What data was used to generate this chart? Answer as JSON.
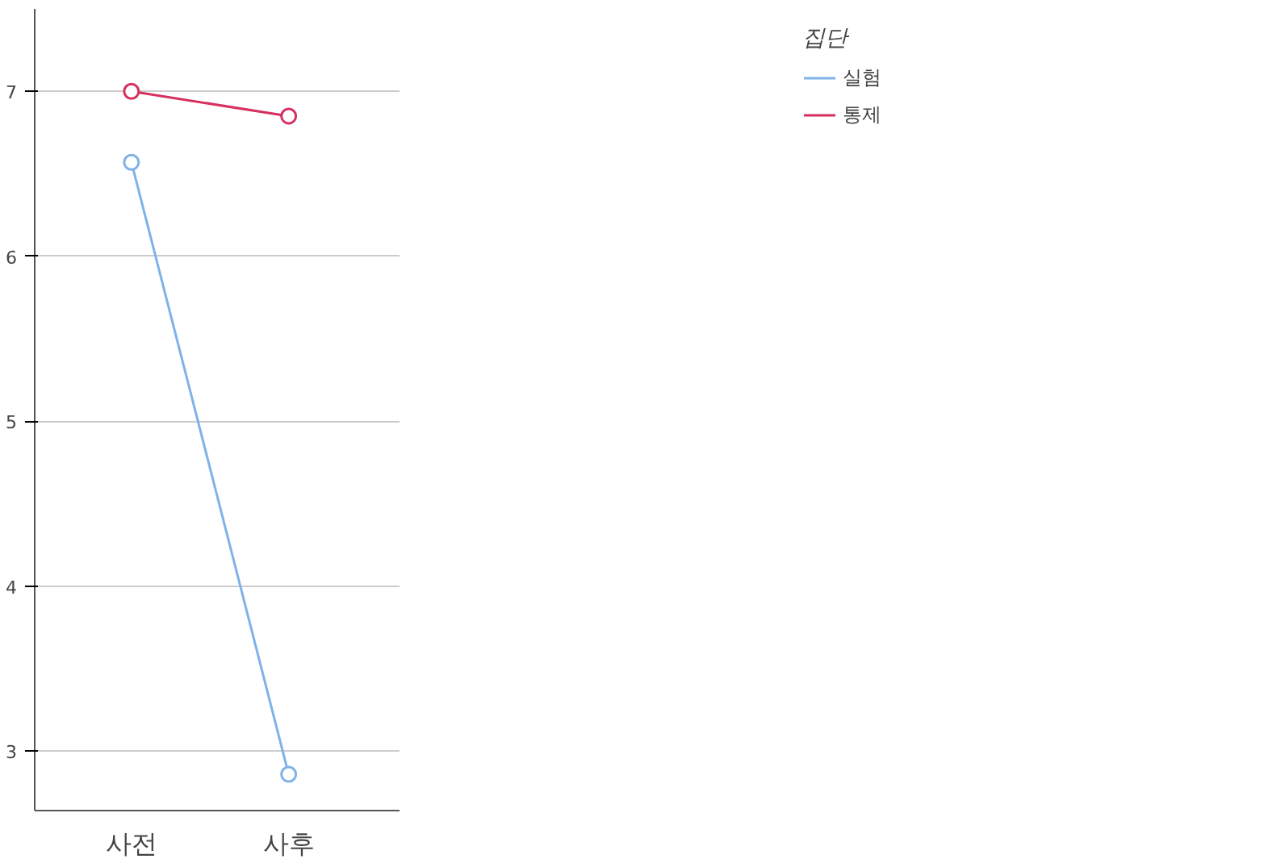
{
  "chart_data": {
    "type": "line",
    "categories": [
      "사전",
      "사후"
    ],
    "series": [
      {
        "name": "실험",
        "color": "#7fb2e8",
        "values": [
          6.57,
          2.86
        ]
      },
      {
        "name": "통제",
        "color": "#d6305e",
        "values": [
          7.0,
          6.85
        ]
      }
    ],
    "ylim": [
      2.64,
      7.5
    ],
    "yticks": [
      3,
      4,
      5,
      6,
      7
    ],
    "grid": "y",
    "legend": "top right",
    "legend_title": "집단",
    "marker": "circle",
    "line_style": "solid"
  }
}
